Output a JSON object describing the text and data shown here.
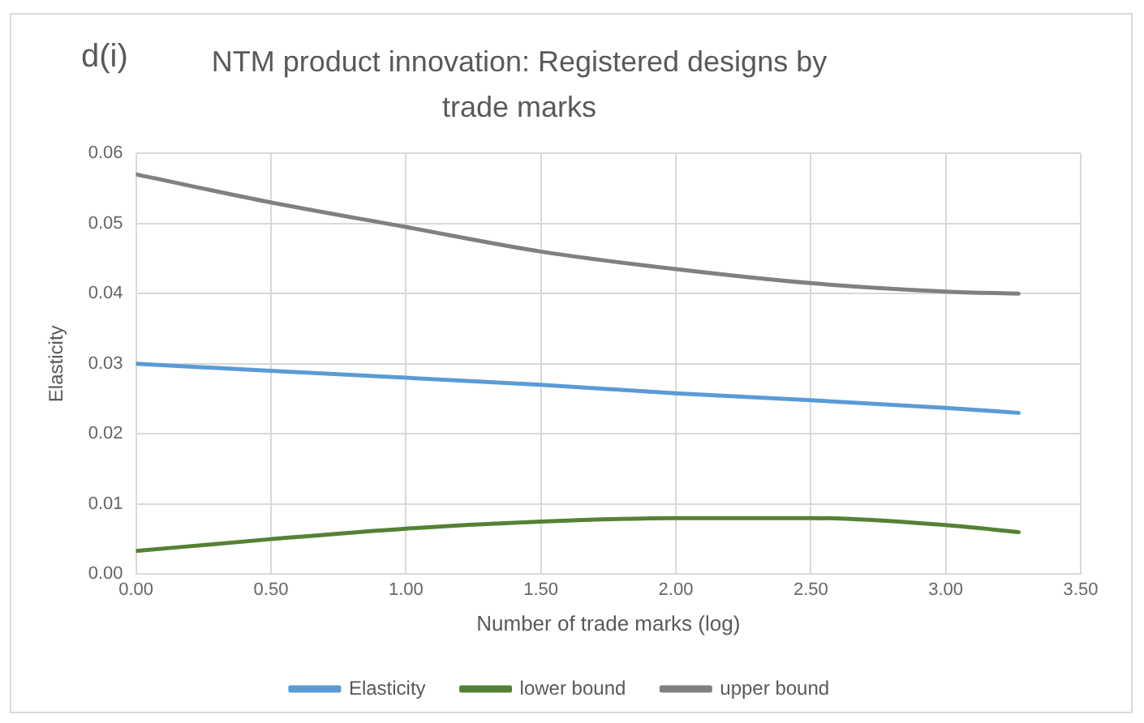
{
  "chart_data": {
    "type": "line",
    "title": "NTM product innovation: Registered designs by trade marks",
    "annotations": [
      "d(i)"
    ],
    "xlabel": "Number of trade marks (log)",
    "ylabel": "Elasticity",
    "x": [
      0,
      0.5,
      1,
      1.5,
      2,
      2.5,
      3,
      3.27
    ],
    "series": [
      {
        "name": "Elasticity",
        "color": "#5b9bd5",
        "values": [
          0.03,
          0.029,
          0.028,
          0.027,
          0.0258,
          0.0248,
          0.0237,
          0.023
        ]
      },
      {
        "name": "lower bound",
        "color": "#548235",
        "values": [
          0.0033,
          0.005,
          0.0065,
          0.0075,
          0.008,
          0.008,
          0.007,
          0.006
        ]
      },
      {
        "name": "upper bound",
        "color": "#808080",
        "values": [
          0.057,
          0.053,
          0.0495,
          0.046,
          0.0435,
          0.0415,
          0.0403,
          0.04
        ]
      }
    ],
    "xlim": [
      0,
      3.5
    ],
    "xticks": [
      {
        "value": 0,
        "label": "0.00"
      },
      {
        "value": 0.5,
        "label": "0.50"
      },
      {
        "value": 1,
        "label": "1.00"
      },
      {
        "value": 1.5,
        "label": "1.50"
      },
      {
        "value": 2,
        "label": "2.00"
      },
      {
        "value": 2.5,
        "label": "2.50"
      },
      {
        "value": 3,
        "label": "3.00"
      },
      {
        "value": 3.5,
        "label": "3.50"
      }
    ],
    "ylim": [
      0,
      0.06
    ],
    "yticks": [
      {
        "value": 0,
        "label": "0.00"
      },
      {
        "value": 0.01,
        "label": "0.01"
      },
      {
        "value": 0.02,
        "label": "0.02"
      },
      {
        "value": 0.03,
        "label": "0.03"
      },
      {
        "value": 0.04,
        "label": "0.04"
      },
      {
        "value": 0.05,
        "label": "0.05"
      },
      {
        "value": 0.06,
        "label": "0.06"
      }
    ],
    "grid": true,
    "legend": "bottom",
    "marker": "none",
    "line_style": "solid"
  }
}
